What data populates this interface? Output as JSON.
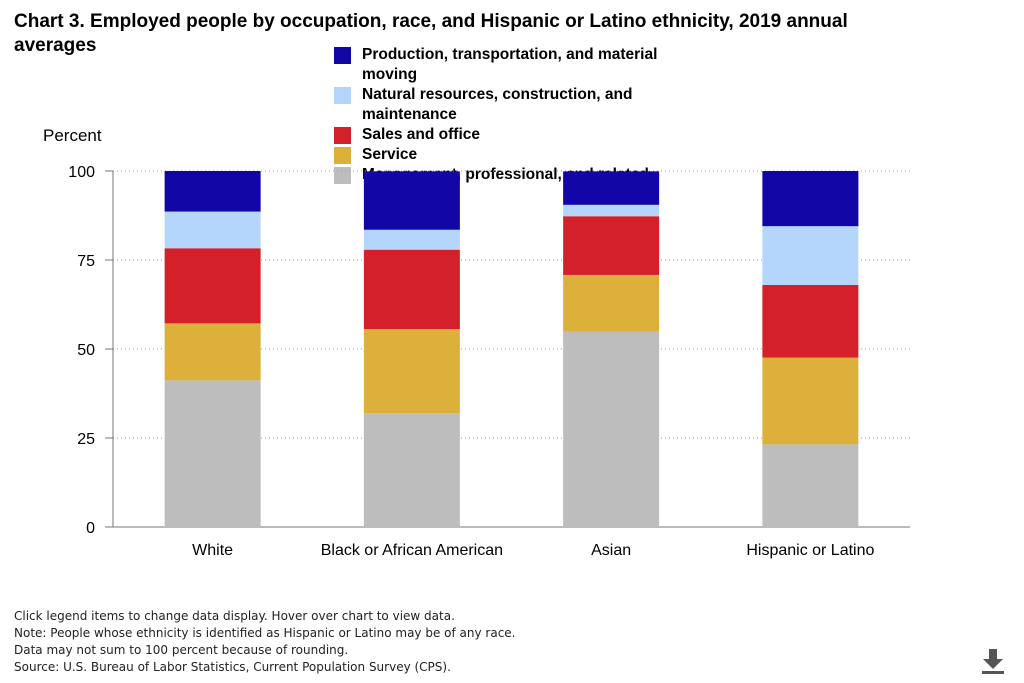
{
  "title": "Chart 3. Employed people by occupation, race, and Hispanic or Latino ethnicity, 2019 annual averages",
  "legend": [
    {
      "label": "Production, transportation, and material moving",
      "color": "#1206a6"
    },
    {
      "label": "Natural resources, construction, and maintenance",
      "color": "#b4d6fc"
    },
    {
      "label": "Sales and office",
      "color": "#d4202a"
    },
    {
      "label": "Service",
      "color": "#dcb03a"
    },
    {
      "label": "Management, professional, and related",
      "color": "#bdbdbd"
    }
  ],
  "y_axis_label": "Percent",
  "notes": [
    "Click legend items to change data display. Hover over chart to view data.",
    "Note: People whose ethnicity is identified as Hispanic or Latino may be of any race.",
    "Data may not sum to 100 percent because of rounding.",
    "Source: U.S. Bureau of Labor Statistics, Current Population Survey (CPS)."
  ],
  "download_icon": "download-icon",
  "chart_data": {
    "type": "bar",
    "stacked": true,
    "categories": [
      "White",
      "Black or African American",
      "Asian",
      "Hispanic or Latino"
    ],
    "series": [
      {
        "name": "Management, professional, and related",
        "color": "#bdbdbd",
        "values": [
          41.2,
          32.0,
          54.9,
          23.2
        ]
      },
      {
        "name": "Service",
        "color": "#dcb03a",
        "values": [
          16.0,
          23.6,
          15.9,
          24.4
        ]
      },
      {
        "name": "Sales and office",
        "color": "#d4202a",
        "values": [
          21.1,
          22.3,
          16.5,
          20.4
        ]
      },
      {
        "name": "Natural resources, construction, and maintenance",
        "color": "#b4d6fc",
        "values": [
          10.3,
          5.6,
          3.2,
          16.5
        ]
      },
      {
        "name": "Production, transportation, and material moving",
        "color": "#1206a6",
        "values": [
          11.4,
          16.4,
          9.4,
          15.5
        ]
      }
    ],
    "ylim": [
      0,
      100
    ],
    "yticks": [
      0,
      25,
      50,
      75,
      100
    ],
    "ylabel": "Percent",
    "grid": "horizontal dotted",
    "legend_position": "top"
  }
}
